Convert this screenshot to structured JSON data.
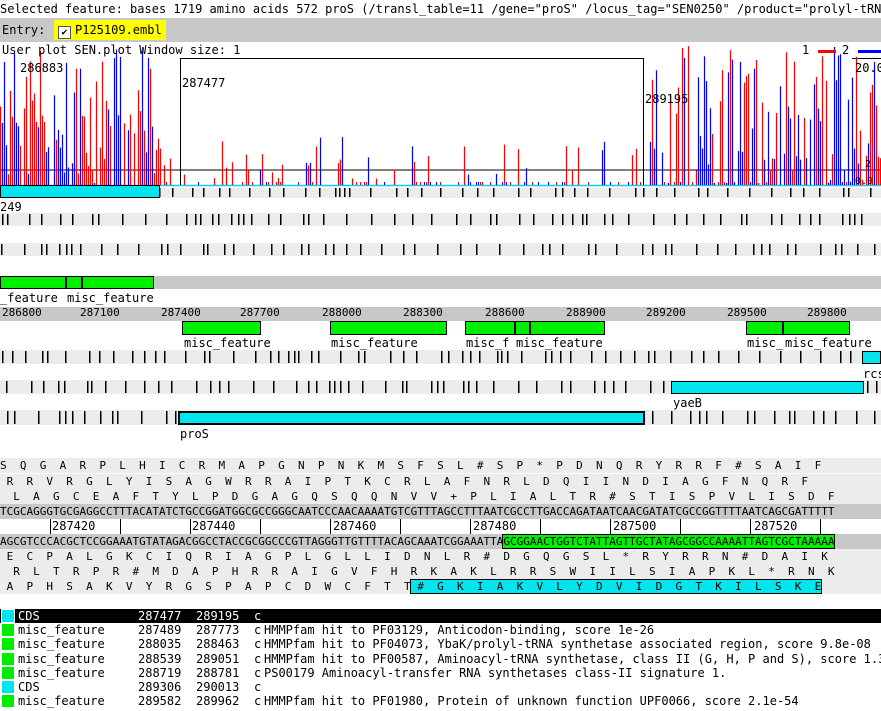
{
  "top_bar": {
    "text": "Selected feature:  bases 1719  amino acids 572  proS  (/transl_table=11 /gene=\"proS\" /locus_tag=\"SEN0250\" /product=\"prolyl-tRN"
  },
  "entry_bar": {
    "label": "Entry:",
    "entry_name": "P125109.embl",
    "checked": true
  },
  "plot": {
    "title": "User plot SEN.plot   Window size: 1",
    "legend": [
      {
        "label": "1",
        "color": "#ff0000"
      },
      {
        "label": "2",
        "color": "#0000ff"
      }
    ],
    "labels": [
      "286883",
      "287477",
      "289195",
      "20.0",
      "2",
      "0.0"
    ],
    "colors": {
      "series1": "#ff0000",
      "series2": "#0000ff",
      "baseline": "#00d0ff"
    }
  },
  "overview": {
    "cds_label_left": "249",
    "feature_labels": [
      "_feature",
      "misc_feature"
    ],
    "ruler_labels": [
      "286800",
      "287100",
      "287400",
      "287700",
      "288000",
      "288300",
      "288600",
      "288900",
      "289200",
      "289500",
      "289800"
    ],
    "lower_feature_labels": [
      "misc_feature",
      "misc_feature",
      "misc_f",
      "misc_feature",
      "misc_",
      "misc_feature"
    ],
    "cds_labels": [
      "rcs",
      "yaeB",
      "proS"
    ]
  },
  "sequence": {
    "frame_f1": "S  Q  G  A  R  P  L  H  I  C  R  M  A  P  G  N  P  N  K  M  S  F  S  L  #  S  P  *  P  D  N  Q  R  Y  R  R  F  #  S  A  I  F",
    "frame_f2": " R  R  V  R  G  L  Y  I  S  A  G  W  R  R  A  I  P  T  K  C  R  L  A  F  N  R  L  D  Q  I  I  N  D  I  A  G  F  N  Q  R  F",
    "frame_f3": "  L  A  G  C  E  A  F  T  Y  L  P  D  G  A  G  Q  S  Q  Q  N  V  V  +  P  L  I  A  L  T  R  #  S  T  I  S  P  V  L  I  S  D  F",
    "forward_dna": "TCGCAGGGTGCGAGGCCTTTACATATCTGCCGGATGGCGCCGGGCAATCCCAACAAAATGTCGTTTAGCCTTTAATCGCCTTGACCAGATAATCAACGATATCGCCGGTTTTAATCAGCGATTTTT",
    "ruler": [
      "287420",
      "287440",
      "287460",
      "287480",
      "287500",
      "287520"
    ],
    "reverse_dna_plain": "AGCGTCCCACGCTCCGGAAATGTATAGACGGCCTACCGCGGCCCGTTAGGGTTGTTTTACAGCAAATCGGAAATTA",
    "reverse_dna_highlight": "GCGGAACTGGTCTATTAGTTGCTATAGCGGCCAAAATTAGTCGCTAAAAA",
    "frame_r1": " E  C  P  A  L  G  K  C  I  Q  R  I  A  G  P  L  G  L  L  I  D  N  L  R  #  D  G  Q  G  S  L  *  R  Y  R  R  N  #  D  A  I  K",
    "frame_r2": "  R  L  T  R  P  R  #  M  D  A  P  H  R  R  A  I  G  V  F  H  R  K  A  K  L  R  R  S  W  I  I  L  S  I  A  P  K  L  *  R  N  K",
    "frame_r3_plain": " A  P  H  S  A  K  V  Y  R  G  S  P  A  P  C  D  W  C  F  T  T",
    "frame_r3_highlight": " #  G  K  I  A  K  V  L  Y  D  V  I  D  G  T  K  I  L  S  K  E"
  },
  "feature_list": [
    {
      "type": "CDS",
      "start": "287477",
      "end": "289195",
      "strand": "c",
      "qualifier": "",
      "color": "#00e5ee",
      "selected": true
    },
    {
      "type": "misc_feature",
      "start": "287489",
      "end": "287773",
      "strand": "c",
      "qualifier": "HMMPfam hit to PF03129, Anticodon-binding, score 1e-26",
      "color": "#00ee00",
      "selected": false
    },
    {
      "type": "misc_feature",
      "start": "288035",
      "end": "288463",
      "strand": "c",
      "qualifier": "HMMPfam hit to PF04073, YbaK/prolyl-tRNA synthetase associated region, score 9.8e-08",
      "color": "#00ee00",
      "selected": false
    },
    {
      "type": "misc_feature",
      "start": "288539",
      "end": "289051",
      "strand": "c",
      "qualifier": "HMMPfam hit to PF00587, Aminoacyl-tRNA synthetase, class II (G, H, P and S), score 1.3e-",
      "color": "#00ee00",
      "selected": false
    },
    {
      "type": "misc_feature",
      "start": "288719",
      "end": "288781",
      "strand": "c",
      "qualifier": "PS00179 Aminoacyl-transfer RNA synthetases class-II signature 1.",
      "color": "#00ee00",
      "selected": false
    },
    {
      "type": "CDS",
      "start": "289306",
      "end": "290013",
      "strand": "c",
      "qualifier": "",
      "color": "#00e5ee",
      "selected": false
    },
    {
      "type": "misc_feature",
      "start": "289582",
      "end": "289962",
      "strand": "c",
      "qualifier": "HMMPfam hit to PF01980, Protein of unknown function UPF0066, score 2.1e-54",
      "color": "#00ee00",
      "selected": false
    }
  ]
}
